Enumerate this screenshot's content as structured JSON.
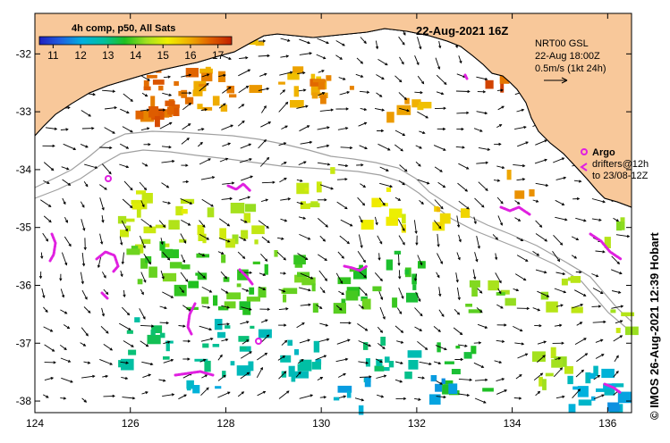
{
  "map": {
    "title": "22-Aug-2021 16Z",
    "product": "4h comp, p50, All Sats",
    "colorbar": {
      "ticks": [
        "11",
        "12",
        "13",
        "14",
        "15",
        "16",
        "17"
      ],
      "min": 10.5,
      "max": 17.5,
      "colors": [
        "#2020c0",
        "#2060e0",
        "#00b0e0",
        "#00c0a0",
        "#20c020",
        "#a0e020",
        "#f0f000",
        "#f0b000",
        "#e06000",
        "#c02000"
      ]
    },
    "current_key": {
      "line1": "NRT00 GSL",
      "line2": "22-Aug 18:00Z",
      "line3": "0.5m/s (1kt 24h)"
    },
    "legend": {
      "argo_label": "Argo",
      "drifters_line1": "drifters@12h",
      "drifters_line2": "to 23/08-12Z",
      "argo_color": "#e020e0"
    },
    "credit": "© IMOS 26-Aug-2021 12:39 Hobart",
    "land_color": "#f8c89a",
    "x_axis": {
      "ticks": [
        "124",
        "126",
        "128",
        "130",
        "132",
        "134",
        "136"
      ],
      "values": [
        124,
        126,
        128,
        130,
        132,
        134,
        136
      ],
      "range": [
        124,
        136.5
      ]
    },
    "y_axis": {
      "ticks": [
        "-32",
        "-33",
        "-34",
        "-35",
        "-36",
        "-37",
        "-38"
      ],
      "values": [
        -32,
        -33,
        -34,
        -35,
        -36,
        -37,
        -38
      ],
      "range": [
        -38.2,
        -31.3
      ]
    }
  }
}
